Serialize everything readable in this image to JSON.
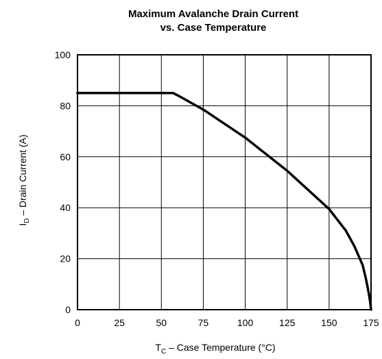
{
  "chart_data": {
    "type": "line",
    "title_line1": "Maximum Avalanche Drain Current",
    "title_line2": "vs. Case  Temperature",
    "xlabel": {
      "main": "T",
      "sub": "C",
      "rest": " – Case Temperature (°C)"
    },
    "ylabel": {
      "main": "I",
      "sub": "D",
      "rest": " – Drain Current (A)"
    },
    "xlim": [
      0,
      175
    ],
    "ylim": [
      0,
      100
    ],
    "xticks": [
      0,
      25,
      50,
      75,
      100,
      125,
      150,
      175
    ],
    "yticks": [
      0,
      20,
      40,
      60,
      80,
      100
    ],
    "grid": true,
    "series": [
      {
        "x": [
          0,
          57,
          60,
          75,
          100,
          125,
          150,
          160,
          165,
          170,
          172,
          173.5,
          174.5,
          175
        ],
        "y": [
          85,
          85,
          84,
          78.5,
          67.5,
          54.5,
          39.5,
          31,
          25,
          17.5,
          12,
          7,
          3,
          0
        ]
      }
    ]
  }
}
